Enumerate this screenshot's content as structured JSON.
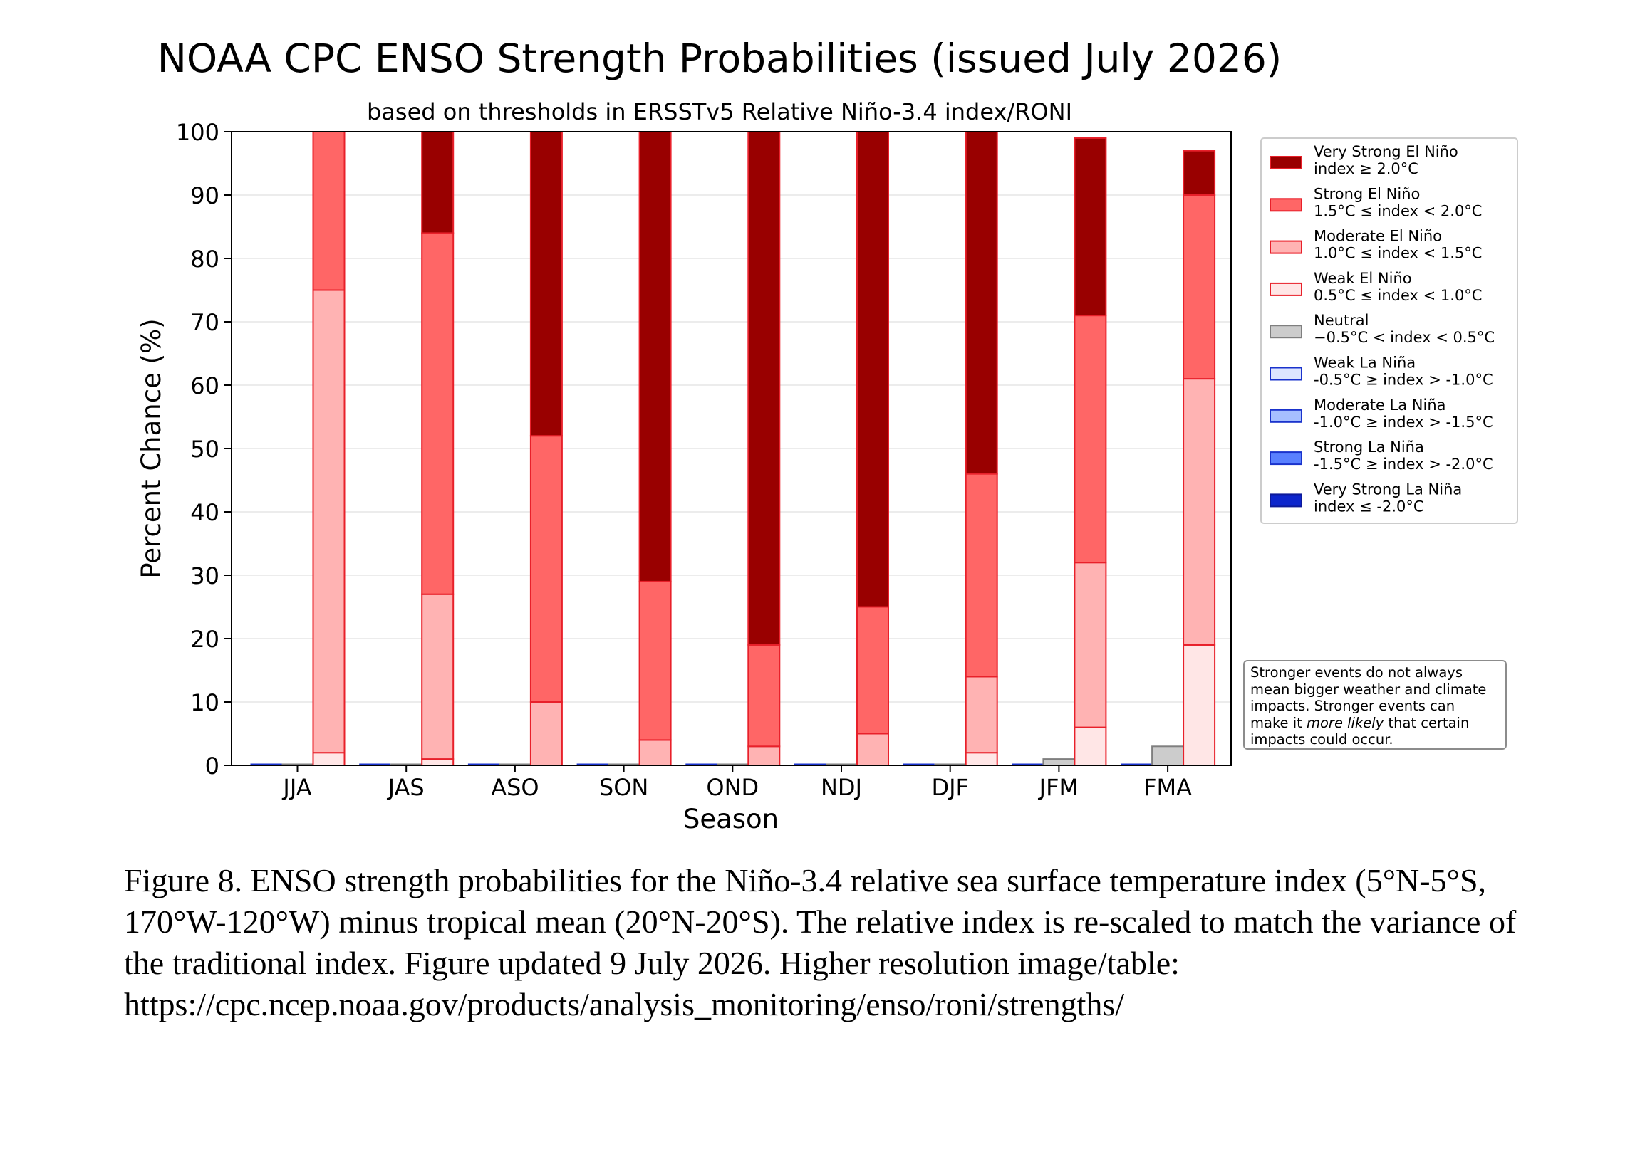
{
  "figure": {
    "caption": "Figure 8. ENSO strength probabilities for the Niño-3.4 relative sea surface temperature index (5°N-5°S, 170°W-120°W) minus tropical mean (20°N-20°S). The relative index is re-scaled to match the variance of the traditional index. Figure updated 9 July 2026. Higher resolution image/table: https://cpc.ncep.noaa.gov/products/analysis_monitoring/enso/roni/strengths/"
  },
  "note": {
    "line1": "Stronger events do not always",
    "line2": "mean bigger weather and climate",
    "line3": "impacts. Stronger events can",
    "line4_before": "make it ",
    "line4_italic": "more likely",
    "line4_after": " that certain",
    "line5": "impacts could occur."
  },
  "chart_data": {
    "type": "bar",
    "stacked": true,
    "title": "NOAA CPC ENSO Strength Probabilities (issued July 2026)",
    "subtitle": "based on thresholds in ERSSTv5 Relative Niño-3.4 index/RONI",
    "xlabel": "Season",
    "ylabel": "Percent Chance (%)",
    "ylim": [
      0,
      100
    ],
    "yticks": [
      0,
      10,
      20,
      30,
      40,
      50,
      60,
      70,
      80,
      90,
      100
    ],
    "grid": true,
    "legend_position": "right",
    "categories": [
      "JJA",
      "JAS",
      "ASO",
      "SON",
      "OND",
      "NDJ",
      "DJF",
      "JFM",
      "FMA"
    ],
    "groups": [
      {
        "name": "La Niña",
        "stack_order": [
          "Weak La Niña",
          "Moderate La Niña",
          "Strong La Niña",
          "Very Strong La Niña"
        ],
        "values": [
          0,
          0,
          0,
          0,
          0,
          0,
          0,
          0,
          0
        ]
      },
      {
        "name": "Neutral",
        "stack_order": [
          "Neutral"
        ],
        "values": [
          0,
          0,
          0,
          0,
          0,
          0,
          0,
          1,
          3
        ]
      },
      {
        "name": "El Niño",
        "stack_order": [
          "Weak El Niño",
          "Moderate El Niño",
          "Strong El Niño",
          "Very Strong El Niño"
        ]
      }
    ],
    "series": [
      {
        "name": "Very Strong El Niño",
        "range": "index ≥ 2.0°C",
        "group": "El Niño",
        "fill": "#990000",
        "edge": "#e8202a",
        "values": [
          0,
          16,
          48,
          71,
          81,
          75,
          54,
          28,
          7
        ]
      },
      {
        "name": "Strong El Niño",
        "range": "1.5°C ≤ index < 2.0°C",
        "group": "El Niño",
        "fill": "#ff6666",
        "edge": "#e8202a",
        "values": [
          25,
          57,
          42,
          25,
          16,
          20,
          32,
          39,
          29
        ]
      },
      {
        "name": "Moderate El Niño",
        "range": "1.0°C ≤ index < 1.5°C",
        "group": "El Niño",
        "fill": "#ffb3b3",
        "edge": "#e8202a",
        "values": [
          73,
          26,
          10,
          4,
          3,
          5,
          12,
          26,
          42
        ]
      },
      {
        "name": "Weak El Niño",
        "range": "0.5°C ≤ index < 1.0°C",
        "group": "El Niño",
        "fill": "#ffe6e6",
        "edge": "#e8202a",
        "values": [
          2,
          1,
          0,
          0,
          0,
          0,
          2,
          6,
          19
        ]
      },
      {
        "name": "Neutral",
        "range": "−0.5°C < index < 0.5°C",
        "group": "Neutral",
        "fill": "#cccccc",
        "edge": "#7f7f7f",
        "values": [
          0,
          0,
          0,
          0,
          0,
          0,
          0,
          1,
          3
        ]
      },
      {
        "name": "Weak La Niña",
        "range": "-0.5°C ≥ index > -1.0°C",
        "group": "La Niña",
        "fill": "#dde6ff",
        "edge": "#1a33cc",
        "values": [
          0,
          0,
          0,
          0,
          0,
          0,
          0,
          0,
          0
        ]
      },
      {
        "name": "Moderate La Niña",
        "range": "-1.0°C ≥ index > -1.5°C",
        "group": "La Niña",
        "fill": "#a6bfff",
        "edge": "#1a33cc",
        "values": [
          0,
          0,
          0,
          0,
          0,
          0,
          0,
          0,
          0
        ]
      },
      {
        "name": "Strong La Niña",
        "range": "-1.5°C ≥ index > -2.0°C",
        "group": "La Niña",
        "fill": "#5980ff",
        "edge": "#1a33cc",
        "values": [
          0,
          0,
          0,
          0,
          0,
          0,
          0,
          0,
          0
        ]
      },
      {
        "name": "Very Strong La Niña",
        "range": "index ≤ -2.0°C",
        "group": "La Niña",
        "fill": "#0d26cc",
        "edge": "#0d1a99",
        "values": [
          0,
          0,
          0,
          0,
          0,
          0,
          0,
          0,
          0
        ]
      }
    ]
  }
}
